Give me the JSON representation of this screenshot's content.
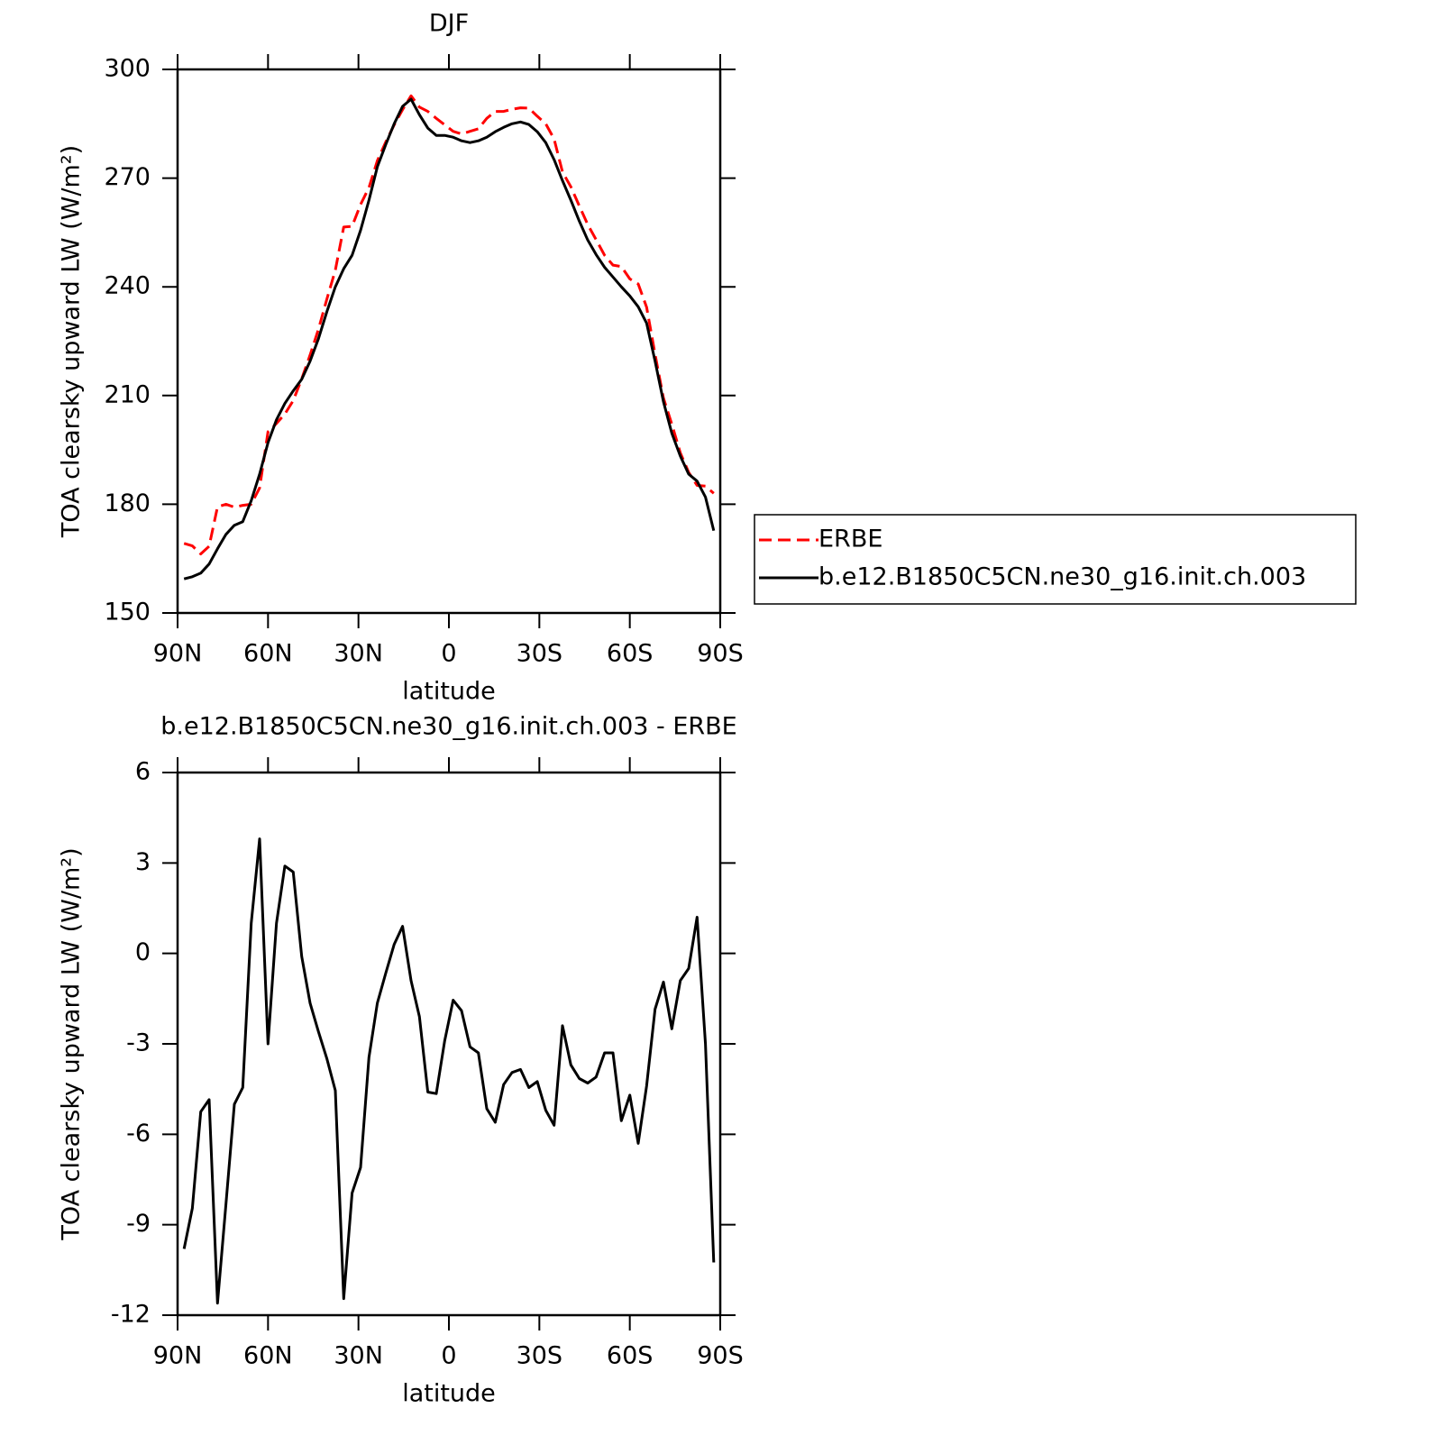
{
  "chart_data": [
    {
      "type": "line",
      "title": "DJF",
      "ylabel": "TOA clearsky upward LW (W/m²)",
      "xlabel": "latitude",
      "x": [
        87.86,
        85.1,
        82.31,
        79.53,
        76.74,
        73.95,
        71.16,
        68.37,
        65.58,
        62.79,
        60.0,
        57.21,
        54.42,
        51.63,
        48.84,
        46.05,
        43.26,
        40.47,
        37.68,
        34.89,
        32.1,
        29.31,
        26.52,
        23.73,
        20.94,
        18.15,
        15.36,
        12.57,
        9.78,
        6.99,
        4.2,
        1.41,
        -1.41,
        -4.2,
        -6.99,
        -9.78,
        -12.57,
        -15.36,
        -18.15,
        -20.94,
        -23.73,
        -26.52,
        -29.31,
        -32.1,
        -34.89,
        -37.68,
        -40.47,
        -43.26,
        -46.05,
        -48.84,
        -51.63,
        -54.42,
        -57.21,
        -60.0,
        -62.79,
        -65.58,
        -68.37,
        -71.16,
        -73.95,
        -76.74,
        -79.53,
        -82.31,
        -85.1,
        -87.86
      ],
      "series": [
        {
          "name": "ERBE",
          "color": "#ff0000",
          "dashed": true,
          "values": [
            169.2,
            168.5,
            166.3,
            168.4,
            179.3,
            180.0,
            179.2,
            179.7,
            180.0,
            184.5,
            200.0,
            202.3,
            204.9,
            208.6,
            214.6,
            221.2,
            228.3,
            236.7,
            244.6,
            256.5,
            256.7,
            262.7,
            267.4,
            274.8,
            280.0,
            284.7,
            288.9,
            292.7,
            289.6,
            288.4,
            286.5,
            284.7,
            282.9,
            282.2,
            282.9,
            283.6,
            286.5,
            288.4,
            288.4,
            289.0,
            289.4,
            289.3,
            287.1,
            285.0,
            280.8,
            271.7,
            267.6,
            262.3,
            257.2,
            253.0,
            248.7,
            246.0,
            245.6,
            242.2,
            240.8,
            234.4,
            221.4,
            209.3,
            202.1,
            194.2,
            188.8,
            185.2,
            185.0,
            183.0
          ]
        },
        {
          "name": "b.e12.B1850C5CN.ne30_g16.init.ch.003",
          "color": "#000000",
          "dashed": false,
          "values": [
            159.4,
            160.0,
            161.0,
            163.5,
            167.7,
            171.7,
            174.2,
            175.2,
            181.0,
            188.3,
            197.0,
            203.3,
            207.8,
            211.3,
            214.5,
            219.5,
            225.7,
            233.2,
            240.0,
            245.0,
            248.7,
            255.6,
            263.9,
            273.1,
            279.3,
            285.0,
            289.8,
            291.8,
            287.5,
            283.8,
            281.8,
            281.8,
            281.3,
            280.3,
            279.8,
            280.3,
            281.3,
            282.8,
            284.0,
            285.0,
            285.5,
            284.8,
            282.8,
            279.8,
            275.1,
            269.3,
            263.9,
            258.1,
            252.9,
            248.9,
            245.4,
            242.7,
            240.0,
            237.5,
            234.5,
            230.0,
            219.5,
            208.3,
            199.6,
            193.3,
            188.3,
            186.4,
            182.0,
            172.7
          ]
        }
      ],
      "xlim": [
        90,
        -90
      ],
      "xticks": [
        {
          "value": 90,
          "label": "90N"
        },
        {
          "value": 60,
          "label": "60N"
        },
        {
          "value": 30,
          "label": "30N"
        },
        0,
        {
          "value": -30,
          "label": "30S"
        },
        {
          "value": -60,
          "label": "60S"
        },
        {
          "value": -90,
          "label": "90S"
        }
      ],
      "ylim": [
        150,
        300
      ],
      "yticks": [
        150,
        180,
        210,
        240,
        270,
        300
      ],
      "legend": "outside-right"
    },
    {
      "type": "line",
      "title": "b.e12.B1850C5CN.ne30_g16.init.ch.003 - ERBE",
      "ylabel": "TOA clearsky upward LW (W/m²)",
      "xlabel": "latitude",
      "x": [
        87.86,
        85.1,
        82.31,
        79.53,
        76.74,
        73.95,
        71.16,
        68.37,
        65.58,
        62.79,
        60.0,
        57.21,
        54.42,
        51.63,
        48.84,
        46.05,
        43.26,
        40.47,
        37.68,
        34.89,
        32.1,
        29.31,
        26.52,
        23.73,
        20.94,
        18.15,
        15.36,
        12.57,
        9.78,
        6.99,
        4.2,
        1.41,
        -1.41,
        -4.2,
        -6.99,
        -9.78,
        -12.57,
        -15.36,
        -18.15,
        -20.94,
        -23.73,
        -26.52,
        -29.31,
        -32.1,
        -34.89,
        -37.68,
        -40.47,
        -43.26,
        -46.05,
        -48.84,
        -51.63,
        -54.42,
        -57.21,
        -60.0,
        -62.79,
        -65.58,
        -68.37,
        -71.16,
        -73.95,
        -76.74,
        -79.53,
        -82.31,
        -85.1,
        -87.86
      ],
      "values": [
        -9.8,
        -8.45,
        -5.25,
        -4.85,
        -11.6,
        -8.3,
        -5.0,
        -4.45,
        1.0,
        3.8,
        -3.0,
        1.0,
        2.9,
        2.7,
        -0.1,
        -1.65,
        -2.6,
        -3.5,
        -4.55,
        -11.45,
        -7.95,
        -7.1,
        -3.45,
        -1.65,
        -0.65,
        0.3,
        0.9,
        -0.9,
        -2.1,
        -4.6,
        -4.65,
        -2.9,
        -1.55,
        -1.9,
        -3.1,
        -3.3,
        -5.15,
        -5.6,
        -4.35,
        -3.95,
        -3.85,
        -4.45,
        -4.25,
        -5.2,
        -5.7,
        -2.4,
        -3.7,
        -4.15,
        -4.3,
        -4.1,
        -3.3,
        -3.3,
        -5.55,
        -4.7,
        -6.3,
        -4.4,
        -1.85,
        -0.95,
        -2.5,
        -0.9,
        -0.5,
        1.2,
        -3.0,
        -10.25
      ],
      "color": "#000000",
      "xlim": [
        90,
        -90
      ],
      "xticks": [
        {
          "value": 90,
          "label": "90N"
        },
        {
          "value": 60,
          "label": "60N"
        },
        {
          "value": 30,
          "label": "30N"
        },
        0,
        {
          "value": -30,
          "label": "30S"
        },
        {
          "value": -60,
          "label": "60S"
        },
        {
          "value": -90,
          "label": "90S"
        }
      ],
      "ylim": [
        -12,
        6
      ],
      "yticks": [
        -12,
        -9,
        -6,
        -3,
        0,
        3,
        6
      ]
    }
  ]
}
